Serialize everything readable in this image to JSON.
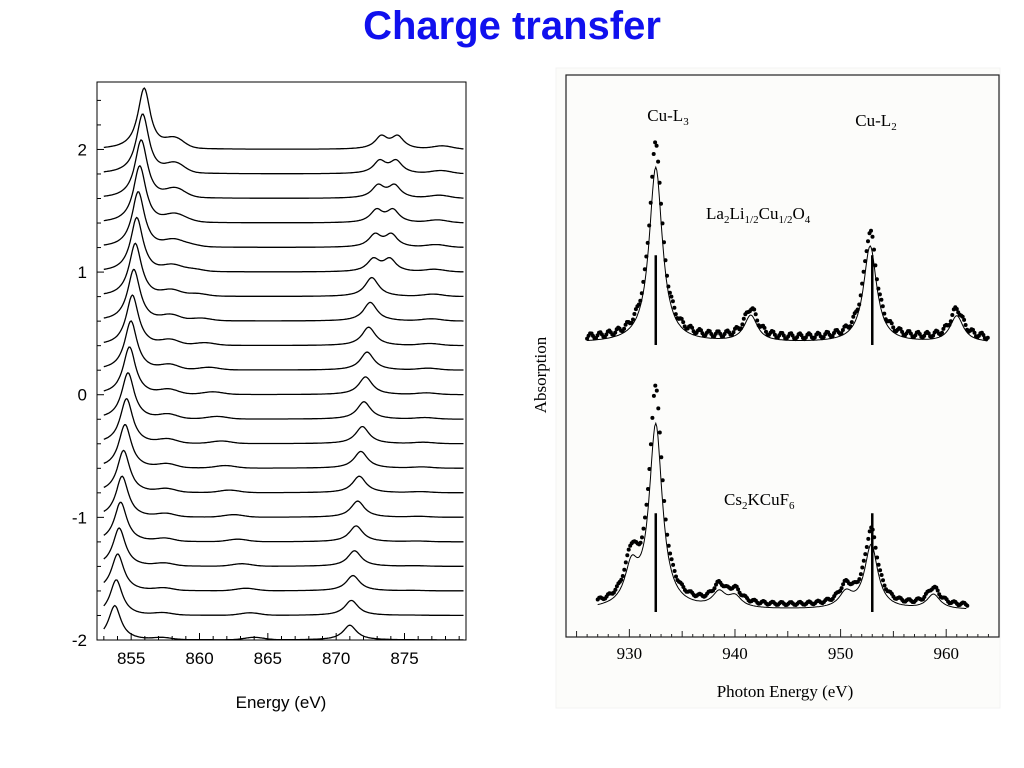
{
  "slide": {
    "title": "Charge transfer",
    "title_color": "#1010ee"
  },
  "chart_data": [
    {
      "type": "line",
      "title": "",
      "xlabel": "Energy (eV)",
      "ylabel": "",
      "xlim": [
        852.5,
        879.5
      ],
      "ylim": [
        -2,
        2.55
      ],
      "xticks": [
        855,
        860,
        865,
        870,
        875
      ],
      "yticks": [
        -2,
        -1,
        0,
        1,
        2
      ],
      "ytick_labels": [
        "-2",
        "-1",
        "0",
        "1",
        "2"
      ],
      "grid": false,
      "legend": "none",
      "description": "Stacked XAS spectra, 21 curves offset by 0.2",
      "series_count": 21,
      "offset_step": 0.2,
      "lowest_offset": -2.0,
      "series_params": {
        "main_peak_x_bottom": 853.8,
        "main_peak_x_top": 855.95,
        "l2_peak_x_bottom": 871.0,
        "l2_peak_x_top": 873.3,
        "main_peak_height_bottom": 0.28,
        "main_peak_height_top": 0.5,
        "l2_splits_into_two_above_index": 15
      }
    },
    {
      "type": "line",
      "title": "",
      "xlabel": "Photon Energy (eV)",
      "ylabel": "Absorption",
      "xlim": [
        924,
        965
      ],
      "xticks": [
        930,
        940,
        950,
        960
      ],
      "grid": false,
      "legend": "none",
      "peak_labels": {
        "l3": {
          "base": "Cu-L",
          "sub": "3"
        },
        "l2": {
          "base": "Cu-L",
          "sub": "2"
        }
      },
      "series": [
        {
          "name_parts": [
            "La",
            "2",
            "Li",
            "1/2",
            "Cu",
            "1/2",
            "O",
            "4"
          ],
          "style": "dots with calculated line",
          "peaks": [
            {
              "x": 932.5,
              "height": 1.0
            },
            {
              "x": 941.5,
              "height": 0.15
            },
            {
              "x": 952.8,
              "height": 0.55
            },
            {
              "x": 961.0,
              "height": 0.15
            }
          ],
          "stick_positions": [
            932.5,
            953.0
          ]
        },
        {
          "name_parts": [
            "Cs",
            "2",
            "KCuF",
            "6"
          ],
          "style": "dots with calculated line",
          "peaks": [
            {
              "x": 930.2,
              "height": 0.2
            },
            {
              "x": 932.5,
              "height": 1.0
            },
            {
              "x": 938.5,
              "height": 0.08
            },
            {
              "x": 940.0,
              "height": 0.06
            },
            {
              "x": 950.5,
              "height": 0.08
            },
            {
              "x": 952.9,
              "height": 0.35
            },
            {
              "x": 958.8,
              "height": 0.08
            }
          ],
          "stick_positions": [
            932.5,
            953.0
          ]
        }
      ]
    }
  ]
}
